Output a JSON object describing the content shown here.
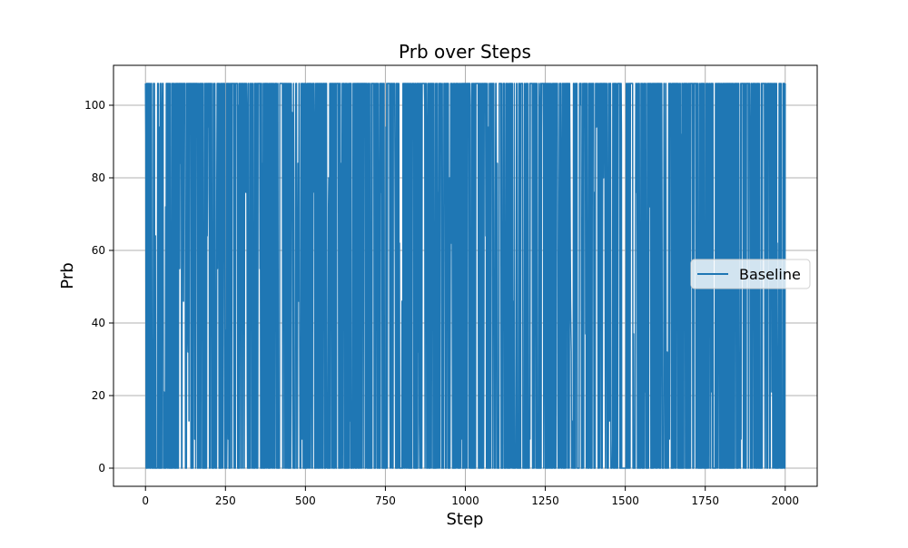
{
  "chart_data": {
    "type": "line",
    "title": "Prb over Steps",
    "xlabel": "Step",
    "ylabel": "Prb",
    "xlim": [
      -100,
      2100
    ],
    "ylim": [
      -5,
      111
    ],
    "xticks": [
      0,
      250,
      500,
      750,
      1000,
      1250,
      1500,
      1750,
      2000
    ],
    "yticks": [
      0,
      20,
      40,
      60,
      80,
      100
    ],
    "grid": true,
    "legend_position": "center-right",
    "series_color": "#1f77b4",
    "series": [
      {
        "name": "Baseline",
        "x_range": [
          0,
          2000
        ],
        "y_min": 0,
        "y_max": 106,
        "notable_values": [
          92,
          106,
          37,
          64,
          76,
          94,
          98,
          21,
          72,
          80,
          55,
          84,
          62,
          46,
          38,
          32,
          13,
          8,
          106,
          100,
          106
        ]
      }
    ]
  }
}
